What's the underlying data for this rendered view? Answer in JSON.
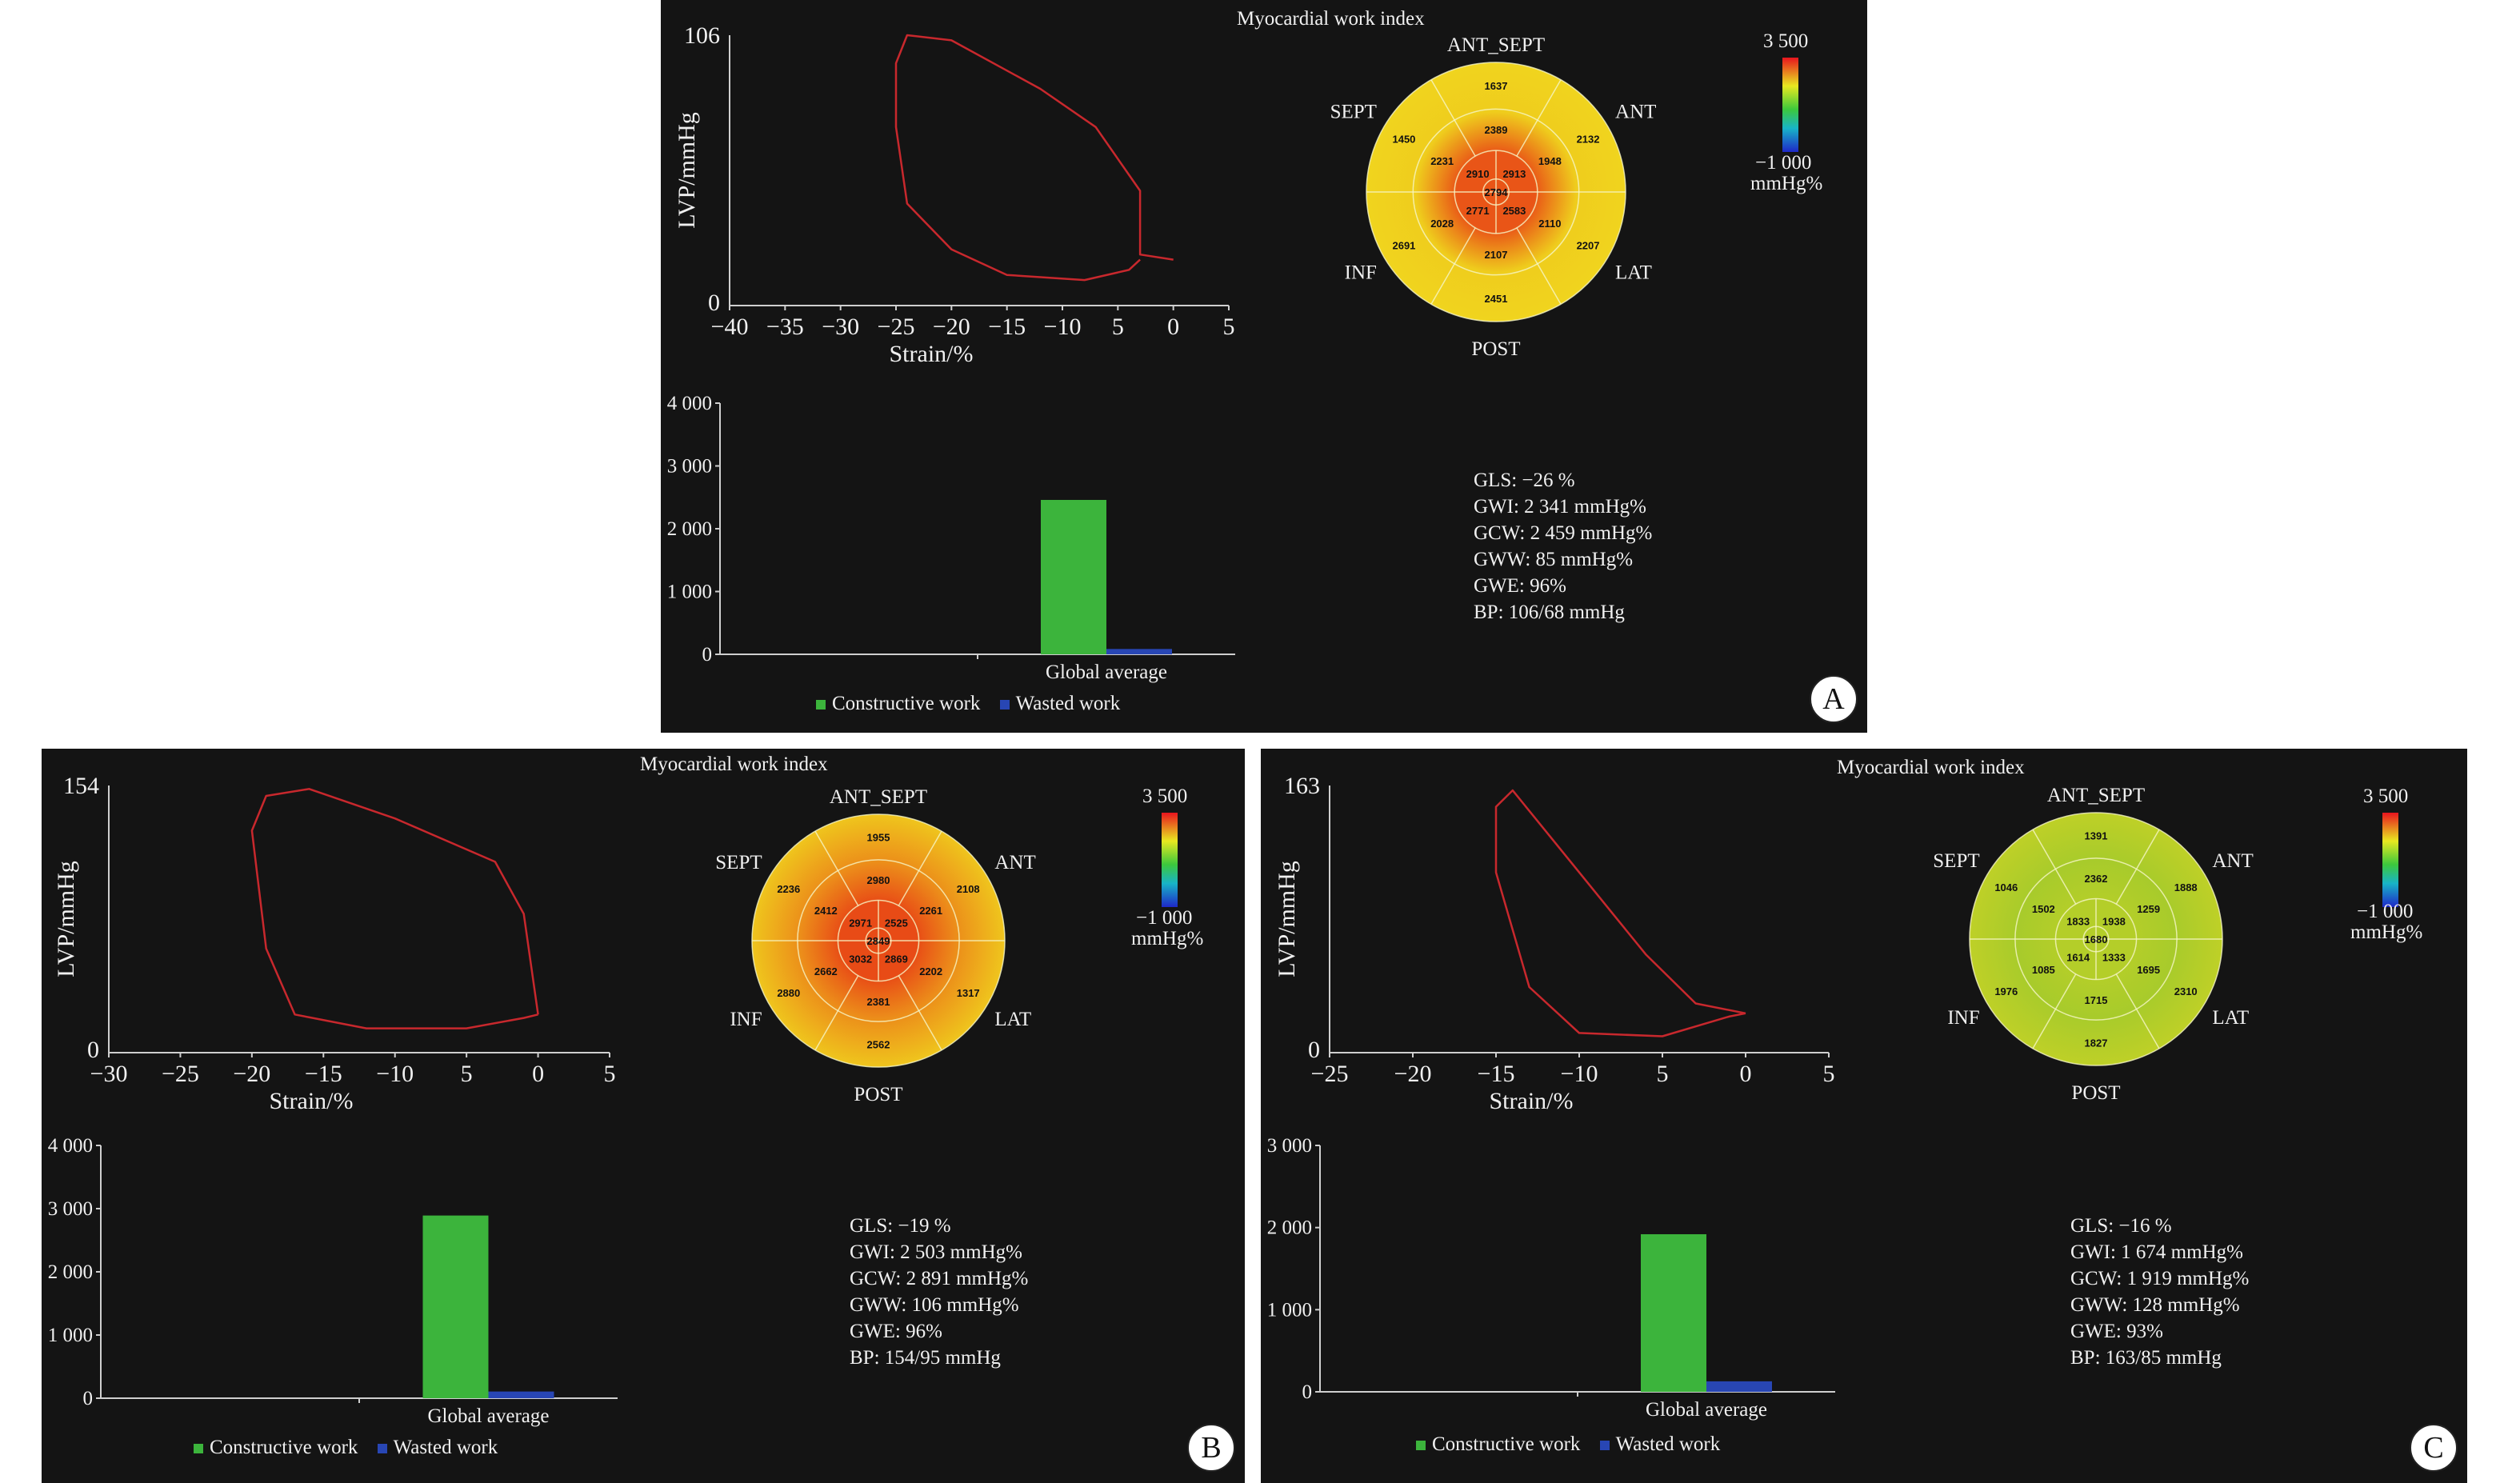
{
  "panels": [
    {
      "letter": "A",
      "title": "Myocardial work index",
      "pv_loop": {
        "ylabel": "LVP/mmHg",
        "xlabel": "Strain/%",
        "ymax_label": "106",
        "ymin_label": "0",
        "xticks": [
          "−40",
          "−35",
          "−30",
          "−25",
          "−20",
          "−15",
          "−10",
          "5",
          "0",
          "5"
        ]
      },
      "bullseye": {
        "labels": {
          "ant_sept": "ANT_SEPT",
          "ant": "ANT",
          "lat": "LAT",
          "post": "POST",
          "inf": "INF",
          "sept": "SEPT"
        },
        "segments": {
          "basal": [
            "1637",
            "2132",
            "2207",
            "2451",
            "2691",
            "1450"
          ],
          "mid": [
            "2389",
            "1948",
            "2110",
            "2107",
            "2028",
            "2231"
          ],
          "apical": [
            "2913",
            "2583",
            "2771",
            "2910"
          ],
          "apex": "2794"
        }
      },
      "scale": {
        "max": "3 500",
        "min": "−1 000",
        "unit": "mmHg%"
      },
      "bar": {
        "yticks": [
          "4 000",
          "3 000",
          "2 000",
          "1 000",
          "0"
        ],
        "category": "Global average",
        "legend": [
          "Constructive work",
          "Wasted work"
        ]
      },
      "metrics": [
        "GLS: −26 %",
        "GWI: 2 341 mmHg%",
        "GCW: 2 459 mmHg%",
        "GWW: 85 mmHg%",
        "GWE: 96%",
        "BP: 106/68 mmHg"
      ]
    },
    {
      "letter": "B",
      "title": "Myocardial work index",
      "pv_loop": {
        "ylabel": "LVP/mmHg",
        "xlabel": "Strain/%",
        "ymax_label": "154",
        "ymin_label": "0",
        "xticks": [
          "−30",
          "−25",
          "−20",
          "−15",
          "−10",
          "5",
          "0",
          "5"
        ]
      },
      "bullseye": {
        "labels": {
          "ant_sept": "ANT_SEPT",
          "ant": "ANT",
          "lat": "LAT",
          "post": "POST",
          "inf": "INF",
          "sept": "SEPT"
        },
        "segments": {
          "basal": [
            "1955",
            "2108",
            "1317",
            "2562",
            "2880",
            "2236"
          ],
          "mid": [
            "2980",
            "2261",
            "2202",
            "2381",
            "2662",
            "2412"
          ],
          "apical": [
            "2525",
            "2869",
            "3032",
            "2971"
          ],
          "apex": "2849"
        }
      },
      "scale": {
        "max": "3 500",
        "min": "−1 000",
        "unit": "mmHg%"
      },
      "bar": {
        "yticks": [
          "4 000",
          "3 000",
          "2 000",
          "1 000",
          "0"
        ],
        "category": "Global average",
        "legend": [
          "Constructive work",
          "Wasted work"
        ]
      },
      "metrics": [
        "GLS: −19 %",
        "GWI: 2 503 mmHg%",
        "GCW: 2 891 mmHg%",
        "GWW: 106 mmHg%",
        "GWE: 96%",
        "BP: 154/95 mmHg"
      ]
    },
    {
      "letter": "C",
      "title": "Myocardial work index",
      "pv_loop": {
        "ylabel": "LVP/mmHg",
        "xlabel": "Strain/%",
        "ymax_label": "163",
        "ymin_label": "0",
        "xticks": [
          "−25",
          "−20",
          "−15",
          "−10",
          "5",
          "0",
          "5"
        ]
      },
      "bullseye": {
        "labels": {
          "ant_sept": "ANT_SEPT",
          "ant": "ANT",
          "lat": "LAT",
          "post": "POST",
          "inf": "INF",
          "sept": "SEPT"
        },
        "segments": {
          "basal": [
            "1391",
            "1888",
            "2310",
            "1827",
            "1976",
            "1046"
          ],
          "mid": [
            "2362",
            "1259",
            "1695",
            "1715",
            "1085",
            "1502"
          ],
          "apical": [
            "1938",
            "1333",
            "1614",
            "1833"
          ],
          "apex": "1680"
        }
      },
      "scale": {
        "max": "3 500",
        "min": "−1 000",
        "unit": "mmHg%"
      },
      "bar": {
        "yticks": [
          "3 000",
          "2 000",
          "1 000",
          "0"
        ],
        "category": "Global average",
        "legend": [
          "Constructive work",
          "Wasted work"
        ]
      },
      "metrics": [
        "GLS: −16 %",
        "GWI: 1 674 mmHg%",
        "GCW: 1 919 mmHg%",
        "GWW: 128 mmHg%",
        "GWE: 93%",
        "BP: 163/85 mmHg"
      ]
    }
  ],
  "colors": {
    "constructive": "#3cb43c",
    "wasted": "#2846b4",
    "loop": "#c8282d",
    "background": "#141414"
  },
  "chart_data": [
    {
      "type": "line",
      "panel": "A",
      "ylim": [
        0,
        106
      ],
      "xlim": [
        -40,
        5
      ],
      "series": [
        {
          "values": [
            [
              0,
              18
            ],
            [
              -3,
              20
            ],
            [
              -3,
              45
            ],
            [
              -7,
              70
            ],
            [
              -12,
              85
            ],
            [
              -20,
              104
            ],
            [
              -24,
              106
            ],
            [
              -25,
              95
            ],
            [
              -25,
              70
            ],
            [
              -24,
              40
            ],
            [
              -20,
              22
            ],
            [
              -15,
              12
            ],
            [
              -8,
              10
            ],
            [
              -4,
              14
            ],
            [
              -3,
              18
            ]
          ]
        }
      ]
    },
    {
      "type": "bar",
      "panel": "A",
      "categories": [
        "Global average"
      ],
      "ylim": [
        0,
        4000
      ],
      "series": [
        {
          "name": "Constructive work",
          "values": [
            2459
          ]
        },
        {
          "name": "Wasted work",
          "values": [
            85
          ]
        }
      ]
    },
    {
      "type": "line",
      "panel": "B",
      "ylim": [
        0,
        154
      ],
      "xlim": [
        -30,
        5
      ],
      "series": [
        {
          "values": [
            [
              0,
              22
            ],
            [
              -1,
              80
            ],
            [
              -3,
              110
            ],
            [
              -10,
              135
            ],
            [
              -16,
              152
            ],
            [
              -19,
              148
            ],
            [
              -20,
              128
            ],
            [
              -19,
              60
            ],
            [
              -17,
              22
            ],
            [
              -12,
              14
            ],
            [
              -5,
              14
            ],
            [
              -1,
              20
            ],
            [
              0,
              22
            ]
          ]
        }
      ]
    },
    {
      "type": "bar",
      "panel": "B",
      "categories": [
        "Global average"
      ],
      "ylim": [
        0,
        4000
      ],
      "series": [
        {
          "name": "Constructive work",
          "values": [
            2891
          ]
        },
        {
          "name": "Wasted work",
          "values": [
            106
          ]
        }
      ]
    },
    {
      "type": "line",
      "panel": "C",
      "ylim": [
        0,
        163
      ],
      "xlim": [
        -25,
        5
      ],
      "series": [
        {
          "values": [
            [
              0,
              24
            ],
            [
              -3,
              30
            ],
            [
              -6,
              60
            ],
            [
              -10,
              110
            ],
            [
              -14,
              160
            ],
            [
              -15,
              150
            ],
            [
              -15,
              110
            ],
            [
              -13,
              40
            ],
            [
              -10,
              12
            ],
            [
              -5,
              10
            ],
            [
              -1,
              22
            ],
            [
              0,
              24
            ]
          ]
        }
      ]
    },
    {
      "type": "bar",
      "panel": "C",
      "categories": [
        "Global average"
      ],
      "ylim": [
        0,
        3000
      ],
      "series": [
        {
          "name": "Constructive work",
          "values": [
            1919
          ]
        },
        {
          "name": "Wasted work",
          "values": [
            128
          ]
        }
      ]
    }
  ]
}
